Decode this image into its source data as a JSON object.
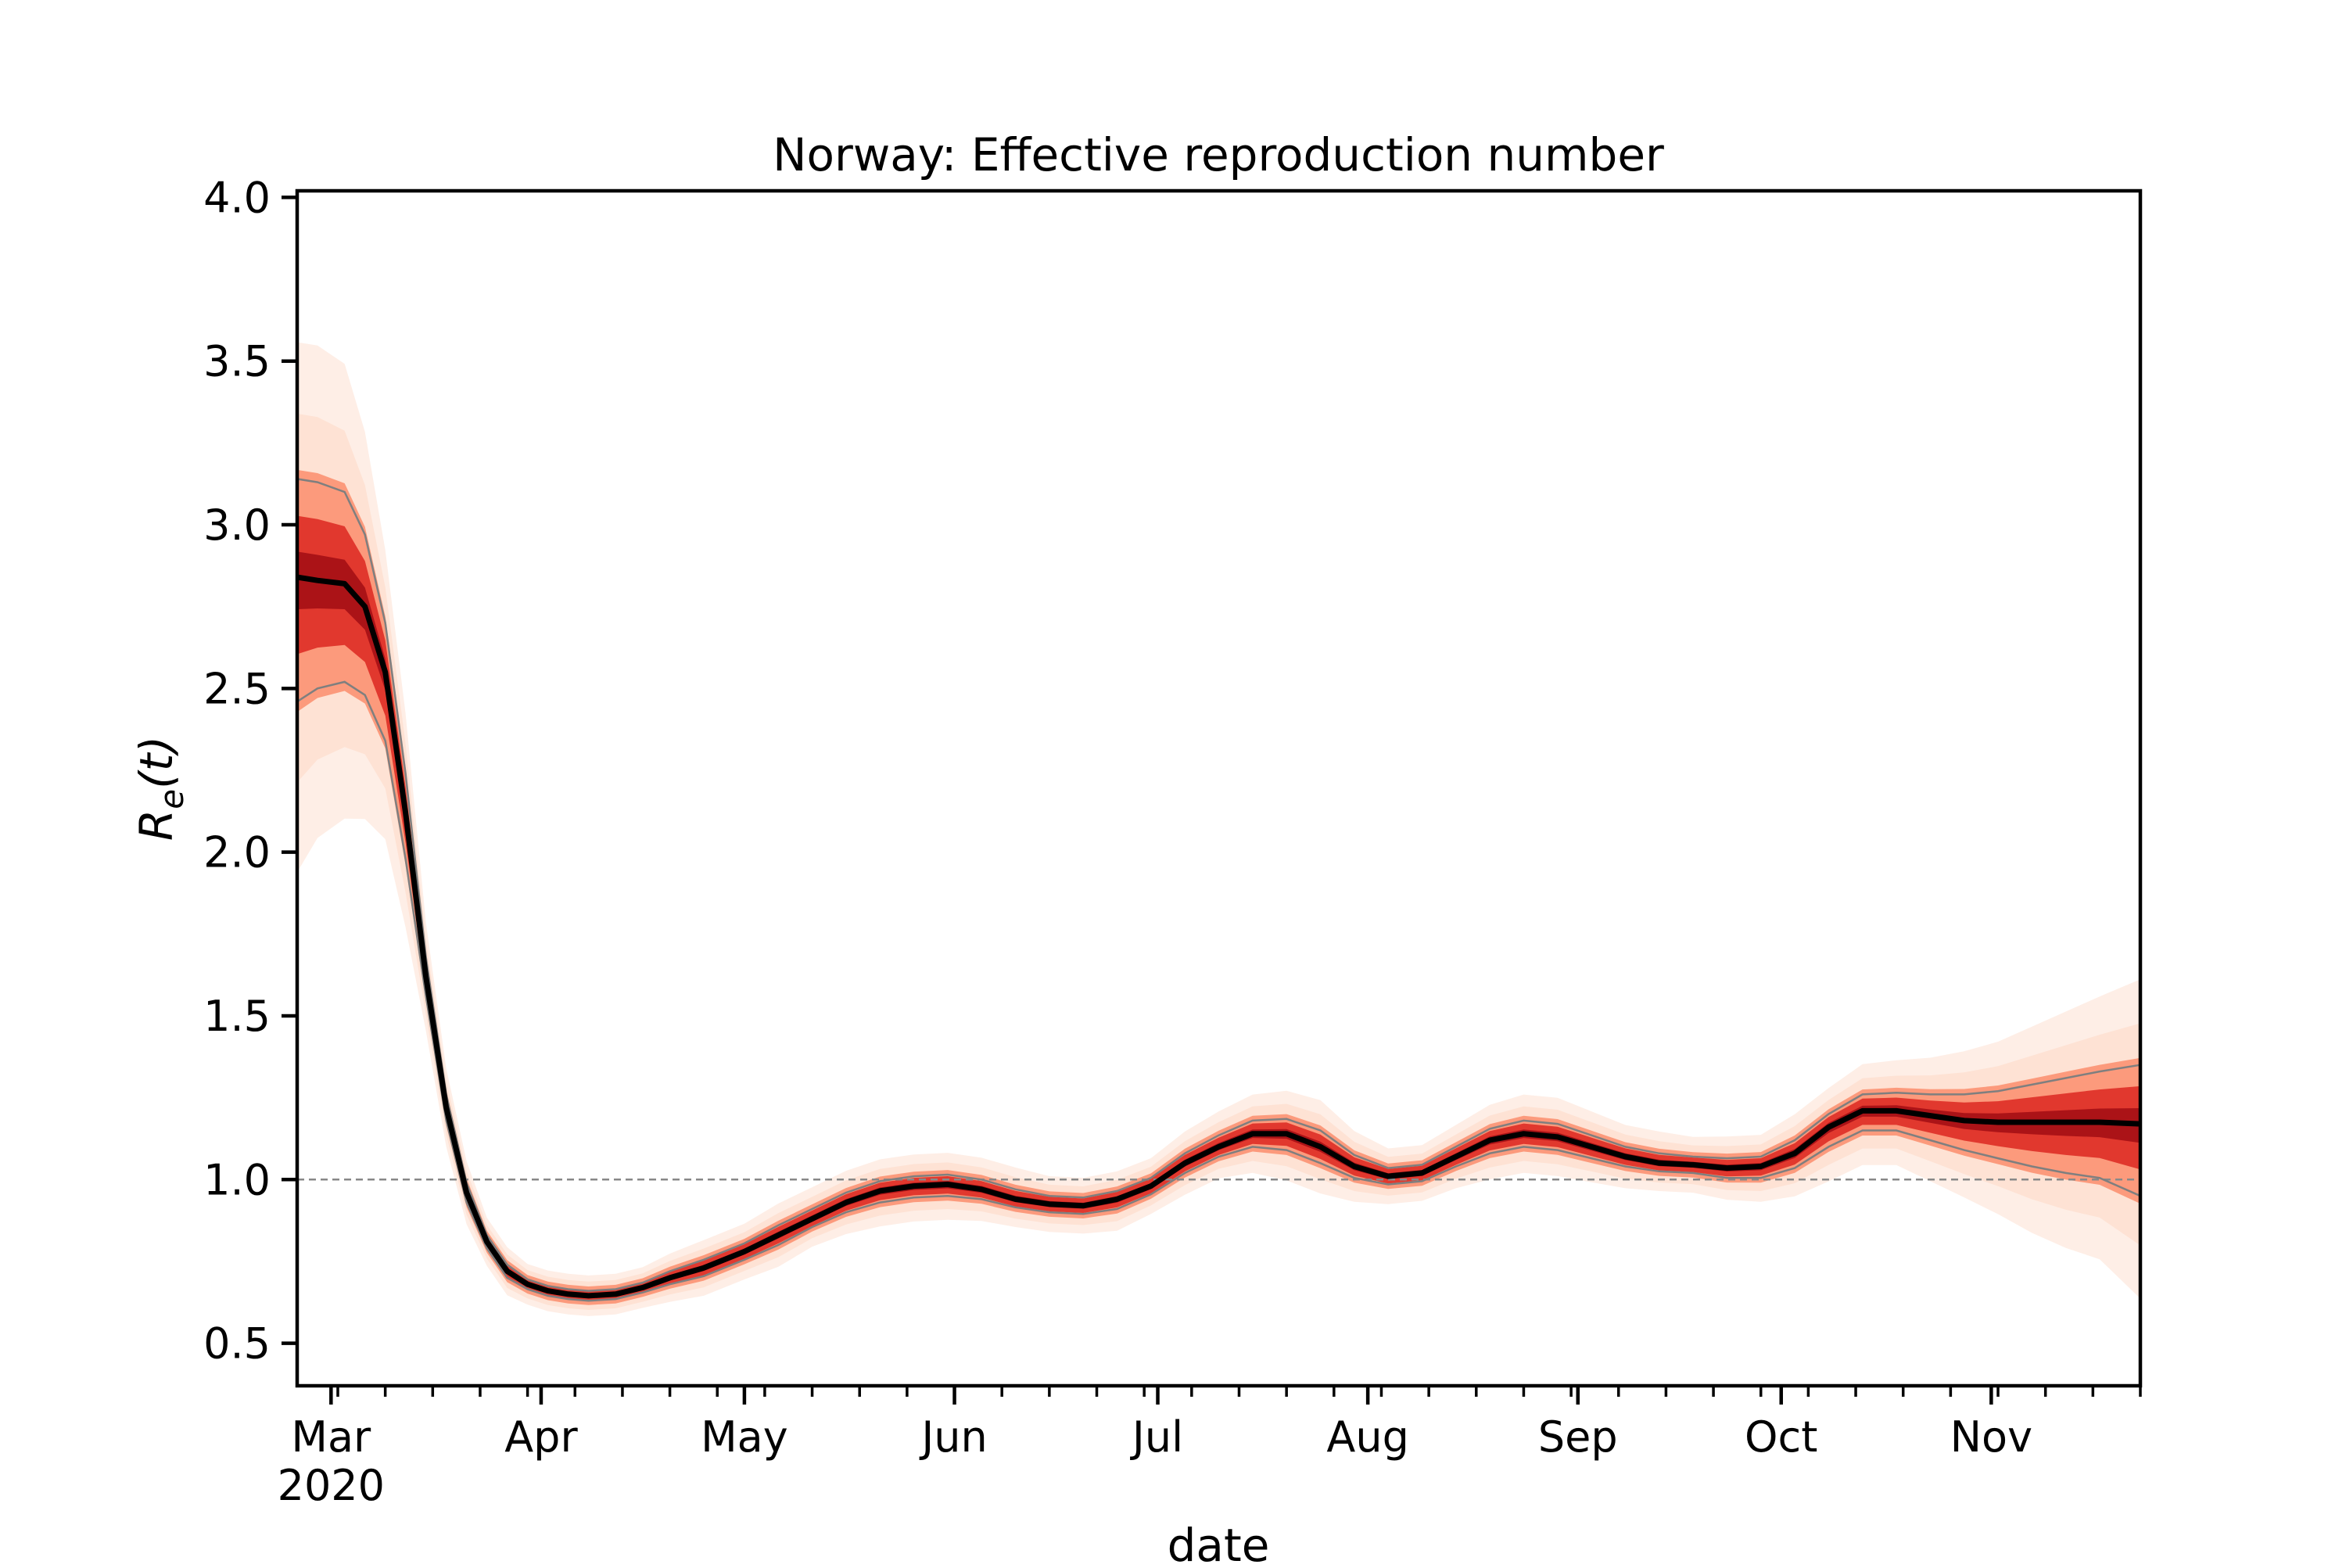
{
  "chart_data": {
    "type": "line",
    "title": "Norway: Effective reproduction number",
    "xlabel": "date",
    "ylabel_main": "R",
    "ylabel_sub": "e",
    "ylabel_arg": "(t)",
    "x_start": "2020-02-25",
    "x_end": "2020-11-23",
    "ylim": [
      0.37,
      4.02
    ],
    "y_ticks": [
      "0.5",
      "1.0",
      "1.5",
      "2.0",
      "2.5",
      "3.0",
      "3.5",
      "4.0"
    ],
    "x_major_ticks": [
      {
        "date": "2020-03-01",
        "label": "Mar",
        "sublabel": "2020"
      },
      {
        "date": "2020-04-01",
        "label": "Apr",
        "sublabel": ""
      },
      {
        "date": "2020-05-01",
        "label": "May",
        "sublabel": ""
      },
      {
        "date": "2020-06-01",
        "label": "Jun",
        "sublabel": ""
      },
      {
        "date": "2020-07-01",
        "label": "Jul",
        "sublabel": ""
      },
      {
        "date": "2020-08-01",
        "label": "Aug",
        "sublabel": ""
      },
      {
        "date": "2020-09-01",
        "label": "Sep",
        "sublabel": ""
      },
      {
        "date": "2020-10-01",
        "label": "Oct",
        "sublabel": ""
      },
      {
        "date": "2020-11-01",
        "label": "Nov",
        "sublabel": ""
      }
    ],
    "reference_line": 1.0,
    "grid": false,
    "colors": {
      "median": "#000000",
      "bounds": "#7f7f7f",
      "band_outer": "#fee0d2",
      "band_mid": "#fc9272",
      "band_inner": "#de2d26",
      "band_core": "#a50f15",
      "reference": "#888888"
    },
    "series": [
      {
        "x": [
          "2020-02-25",
          "2020-02-28",
          "2020-03-03",
          "2020-03-06",
          "2020-03-09",
          "2020-03-12",
          "2020-03-15",
          "2020-03-18",
          "2020-03-21",
          "2020-03-24",
          "2020-03-27",
          "2020-03-30",
          "2020-04-02",
          "2020-04-05",
          "2020-04-08",
          "2020-04-12",
          "2020-04-16",
          "2020-04-20",
          "2020-04-25",
          "2020-05-01",
          "2020-05-06",
          "2020-05-11",
          "2020-05-16",
          "2020-05-21",
          "2020-05-26",
          "2020-05-31",
          "2020-06-05",
          "2020-06-10",
          "2020-06-15",
          "2020-06-20",
          "2020-06-25",
          "2020-06-30",
          "2020-07-05",
          "2020-07-10",
          "2020-07-15",
          "2020-07-20",
          "2020-07-25",
          "2020-07-30",
          "2020-08-04",
          "2020-08-09",
          "2020-08-14",
          "2020-08-19",
          "2020-08-24",
          "2020-08-29",
          "2020-09-03",
          "2020-09-08",
          "2020-09-13",
          "2020-09-18",
          "2020-09-23",
          "2020-09-28",
          "2020-10-03",
          "2020-10-08",
          "2020-10-13",
          "2020-10-18",
          "2020-10-23",
          "2020-10-28",
          "2020-11-02",
          "2020-11-07",
          "2020-11-12",
          "2020-11-17",
          "2020-11-23"
        ],
        "median": [
          2.84,
          2.83,
          2.82,
          2.75,
          2.55,
          2.12,
          1.62,
          1.22,
          0.96,
          0.81,
          0.72,
          0.68,
          0.66,
          0.65,
          0.645,
          0.65,
          0.67,
          0.7,
          0.73,
          0.78,
          0.83,
          0.88,
          0.93,
          0.965,
          0.98,
          0.985,
          0.97,
          0.94,
          0.925,
          0.92,
          0.94,
          0.98,
          1.05,
          1.1,
          1.14,
          1.14,
          1.1,
          1.04,
          1.01,
          1.02,
          1.07,
          1.12,
          1.14,
          1.13,
          1.1,
          1.07,
          1.05,
          1.045,
          1.035,
          1.04,
          1.08,
          1.16,
          1.21,
          1.21,
          1.195,
          1.18,
          1.175,
          1.175,
          1.175,
          1.175,
          1.17
        ],
        "lower": [
          2.46,
          2.5,
          2.52,
          2.48,
          2.34,
          1.98,
          1.56,
          1.18,
          0.93,
          0.79,
          0.7,
          0.665,
          0.645,
          0.635,
          0.63,
          0.635,
          0.655,
          0.68,
          0.705,
          0.755,
          0.8,
          0.855,
          0.9,
          0.93,
          0.945,
          0.95,
          0.94,
          0.915,
          0.9,
          0.895,
          0.91,
          0.955,
          1.02,
          1.07,
          1.1,
          1.09,
          1.05,
          1.005,
          0.985,
          0.995,
          1.04,
          1.08,
          1.1,
          1.09,
          1.065,
          1.04,
          1.025,
          1.02,
          1.005,
          1.005,
          1.035,
          1.1,
          1.15,
          1.15,
          1.12,
          1.09,
          1.065,
          1.04,
          1.02,
          1.005,
          0.95
        ],
        "upper": [
          3.14,
          3.13,
          3.1,
          2.97,
          2.7,
          2.24,
          1.68,
          1.26,
          0.99,
          0.83,
          0.74,
          0.695,
          0.675,
          0.665,
          0.66,
          0.665,
          0.685,
          0.72,
          0.755,
          0.805,
          0.86,
          0.91,
          0.96,
          0.995,
          1.01,
          1.015,
          1.0,
          0.97,
          0.95,
          0.945,
          0.965,
          1.005,
          1.08,
          1.135,
          1.18,
          1.185,
          1.15,
          1.075,
          1.035,
          1.045,
          1.1,
          1.155,
          1.18,
          1.17,
          1.135,
          1.1,
          1.08,
          1.07,
          1.065,
          1.07,
          1.12,
          1.2,
          1.26,
          1.265,
          1.26,
          1.26,
          1.27,
          1.29,
          1.31,
          1.33,
          1.35
        ]
      }
    ]
  }
}
